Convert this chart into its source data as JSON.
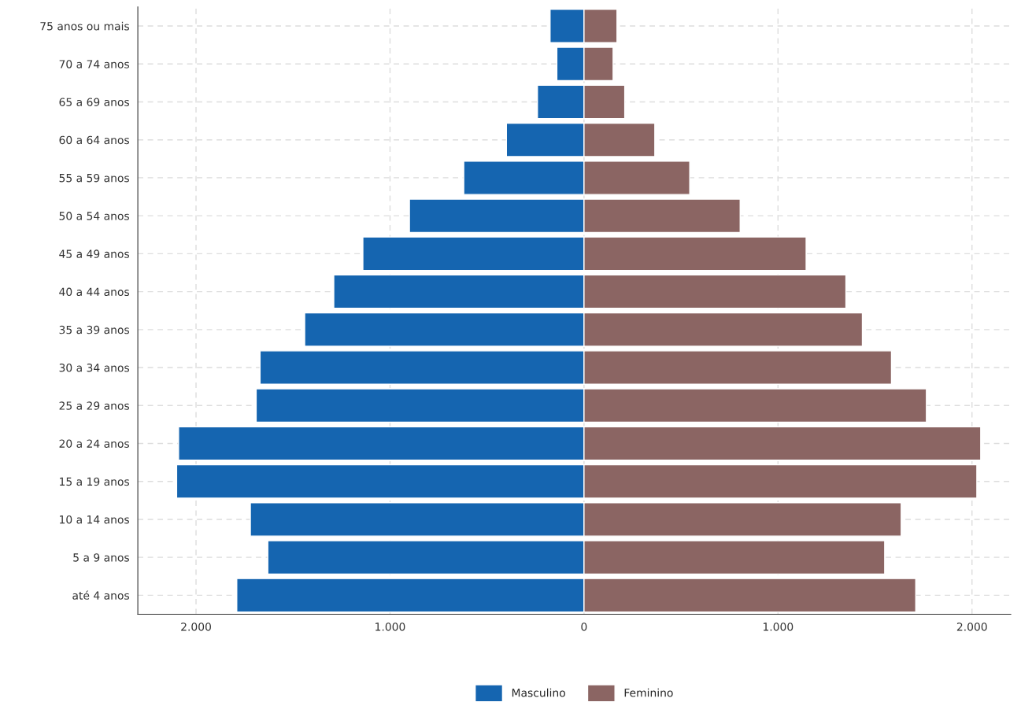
{
  "chart_data": {
    "type": "bar",
    "orientation": "horizontal",
    "stacked": true,
    "categories": [
      "75 anos ou mais",
      "70 a 74 anos",
      "65 a 69 anos",
      "60 a 64 anos",
      "55 a 59 anos",
      "50 a 54 anos",
      "45 a 49 anos",
      "40 a 44 anos",
      "35 a 39 anos",
      "30 a 34 anos",
      "25 a 29 anos",
      "20 a 24 anos",
      "15 a 19 anos",
      "10 a 14 anos",
      "5 a 9 anos",
      "até 4 anos"
    ],
    "series": [
      {
        "name": "Masculino",
        "color": "#1565b0",
        "values": [
          -175,
          -140,
          -240,
          -400,
          -620,
          -900,
          -1140,
          -1290,
          -1440,
          -1670,
          -1690,
          -2090,
          -2100,
          -1720,
          -1630,
          -1790
        ]
      },
      {
        "name": "Feminino",
        "color": "#8b6563",
        "values": [
          170,
          150,
          210,
          365,
          545,
          805,
          1145,
          1350,
          1435,
          1585,
          1765,
          2045,
          2025,
          1635,
          1550,
          1710
        ]
      }
    ],
    "xlim": [
      -2300,
      2200
    ],
    "xticks": [
      {
        "value": -2000,
        "label": "2.000"
      },
      {
        "value": -1000,
        "label": "1.000"
      },
      0,
      {
        "value": 1000,
        "label": "1.000"
      },
      {
        "value": 2000,
        "label": "2.000"
      }
    ],
    "grid": true,
    "line_style": "dashed",
    "legend": "bottom"
  }
}
